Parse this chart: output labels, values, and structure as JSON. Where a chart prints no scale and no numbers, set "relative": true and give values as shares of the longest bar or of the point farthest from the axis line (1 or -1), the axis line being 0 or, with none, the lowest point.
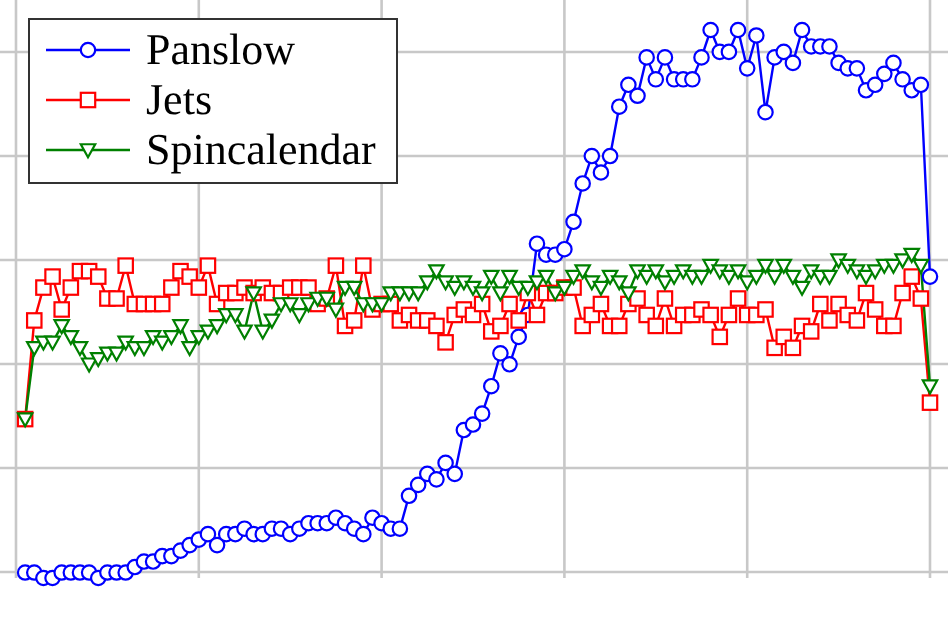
{
  "chart_data": {
    "type": "line",
    "relative": true,
    "grid": true,
    "legend": "top left",
    "categories": [
      null,
      null,
      null,
      null,
      null,
      null,
      null,
      null,
      null,
      null,
      null,
      null,
      null,
      null,
      null,
      null,
      null,
      null,
      null,
      null,
      null,
      null,
      null,
      null,
      null,
      null,
      null,
      null,
      null,
      null,
      null,
      null,
      null,
      null,
      null,
      null,
      null,
      null,
      null,
      null,
      null,
      null,
      null,
      null,
      null,
      null,
      null,
      null,
      null,
      null,
      null,
      null,
      null,
      null,
      null,
      null,
      null,
      null,
      null,
      null,
      null,
      null,
      null,
      null,
      null,
      null,
      null,
      null,
      null,
      null,
      null,
      null,
      null,
      null,
      null,
      null,
      null,
      null,
      null,
      null,
      null,
      null,
      null,
      null,
      null,
      null,
      null,
      null,
      null,
      null,
      null,
      null,
      null,
      null,
      null,
      null,
      null,
      null,
      null,
      null
    ],
    "series": [
      {
        "name": "Panslow",
        "color": "#0000ff",
        "marker": "circle",
        "values": [
          0.01,
          0.01,
          0,
          0,
          0.01,
          0.01,
          0.01,
          0.01,
          0,
          0.01,
          0.01,
          0.01,
          0.02,
          0.03,
          0.03,
          0.04,
          0.04,
          0.05,
          0.06,
          0.07,
          0.08,
          0.06,
          0.08,
          0.08,
          0.09,
          0.08,
          0.08,
          0.09,
          0.09,
          0.08,
          0.09,
          0.1,
          0.1,
          0.1,
          0.11,
          0.1,
          0.09,
          0.08,
          0.11,
          0.1,
          0.09,
          0.09,
          0.15,
          0.17,
          0.19,
          0.18,
          0.21,
          0.19,
          0.27,
          0.28,
          0.3,
          0.35,
          0.41,
          0.39,
          0.44,
          0.48,
          0.61,
          0.59,
          0.59,
          0.6,
          0.65,
          0.72,
          0.77,
          0.74,
          0.77,
          0.86,
          0.9,
          0.88,
          0.95,
          0.91,
          0.95,
          0.91,
          0.91,
          0.91,
          0.95,
          1,
          0.96,
          0.96,
          1,
          0.93,
          0.99,
          0.85,
          0.95,
          0.96,
          0.94,
          1,
          0.97,
          0.97,
          0.97,
          0.94,
          0.93,
          0.93,
          0.89,
          0.9,
          0.92,
          0.94,
          0.91,
          0.89,
          0.9,
          0.55
        ]
      },
      {
        "name": "Jets",
        "color": "#ff0000",
        "marker": "square",
        "values": [
          0.29,
          0.47,
          0.53,
          0.55,
          0.49,
          0.53,
          0.56,
          0.56,
          0.55,
          0.51,
          0.51,
          0.57,
          0.5,
          0.5,
          0.5,
          0.5,
          0.53,
          0.56,
          0.55,
          0.53,
          0.57,
          0.5,
          0.52,
          0.52,
          0.53,
          0.52,
          0.53,
          0.52,
          0.52,
          0.53,
          0.53,
          0.53,
          0.5,
          0.51,
          0.57,
          0.46,
          0.47,
          0.57,
          0.49,
          0.5,
          0.5,
          0.47,
          0.48,
          0.47,
          0.47,
          0.46,
          0.43,
          0.48,
          0.49,
          0.48,
          0.5,
          0.45,
          0.46,
          0.5,
          0.47,
          0.52,
          0.48,
          0.52,
          0.52,
          0.53,
          0.53,
          0.46,
          0.48,
          0.5,
          0.46,
          0.46,
          0.5,
          0.51,
          0.48,
          0.46,
          0.51,
          0.46,
          0.48,
          0.48,
          0.49,
          0.48,
          0.44,
          0.48,
          0.51,
          0.48,
          0.48,
          0.49,
          0.42,
          0.44,
          0.42,
          0.46,
          0.45,
          0.5,
          0.47,
          0.5,
          0.48,
          0.47,
          0.52,
          0.49,
          0.46,
          0.46,
          0.52,
          0.55,
          0.51,
          0.32
        ]
      },
      {
        "name": "Spincalendar",
        "color": "#008000",
        "marker": "triangle",
        "values": [
          0.29,
          0.42,
          0.43,
          0.43,
          0.46,
          0.44,
          0.42,
          0.39,
          0.4,
          0.41,
          0.41,
          0.43,
          0.42,
          0.42,
          0.44,
          0.43,
          0.44,
          0.46,
          0.42,
          0.44,
          0.45,
          0.46,
          0.48,
          0.48,
          0.45,
          0.52,
          0.45,
          0.47,
          0.5,
          0.5,
          0.48,
          0.5,
          0.51,
          0.51,
          0.49,
          0.53,
          0.53,
          0.5,
          0.5,
          0.5,
          0.52,
          0.52,
          0.52,
          0.52,
          0.54,
          0.56,
          0.54,
          0.53,
          0.54,
          0.53,
          0.52,
          0.55,
          0.52,
          0.55,
          0.53,
          0.53,
          0.54,
          0.55,
          0.52,
          0.53,
          0.55,
          0.56,
          0.54,
          0.53,
          0.55,
          0.54,
          0.52,
          0.56,
          0.55,
          0.56,
          0.54,
          0.55,
          0.56,
          0.55,
          0.55,
          0.57,
          0.56,
          0.55,
          0.56,
          0.54,
          0.55,
          0.57,
          0.55,
          0.57,
          0.55,
          0.53,
          0.56,
          0.55,
          0.55,
          0.58,
          0.57,
          0.56,
          0.55,
          0.56,
          0.57,
          0.57,
          0.58,
          0.59,
          0.57,
          0.35
        ]
      }
    ]
  }
}
